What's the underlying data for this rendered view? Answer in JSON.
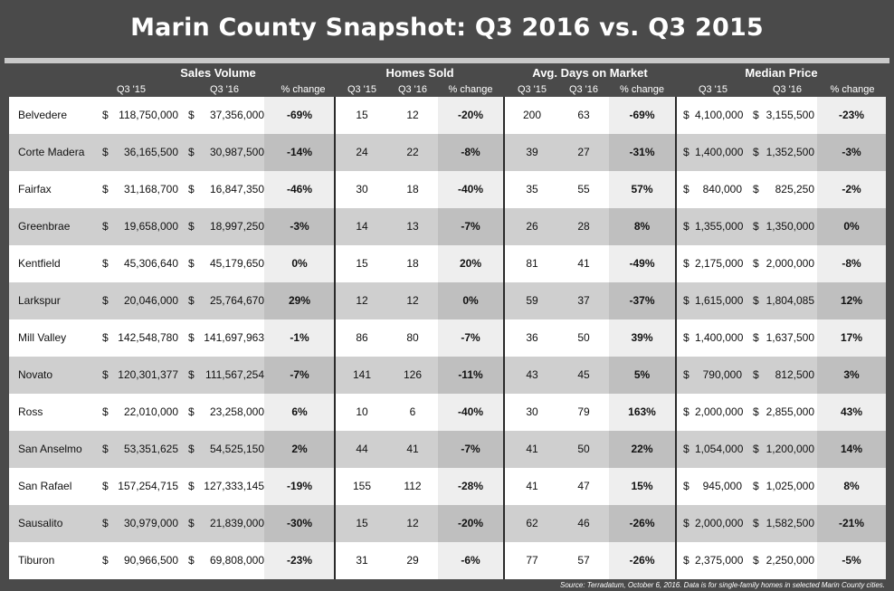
{
  "chart_data": {
    "type": "table",
    "title": "Marin County Snapshot: Q3 2016 vs. Q3 2015",
    "groups": [
      {
        "name": "Sales Volume",
        "columns": [
          "Q3 '15",
          "Q3 '16",
          "% change"
        ]
      },
      {
        "name": "Homes Sold",
        "columns": [
          "Q3 '15",
          "Q3 '16",
          "% change"
        ]
      },
      {
        "name": "Avg. Days on Market",
        "columns": [
          "Q3 '15",
          "Q3 '16",
          "% change"
        ]
      },
      {
        "name": "Median Price",
        "columns": [
          "Q3 '15",
          "Q3 '16",
          "% change"
        ]
      }
    ],
    "currency_symbol": "$",
    "rows": [
      {
        "city": "Belvedere",
        "sv15": "118,750,000",
        "sv16": "37,356,000",
        "svpc": "-69%",
        "hs15": "15",
        "hs16": "12",
        "hspc": "-20%",
        "dm15": "200",
        "dm16": "63",
        "dmpc": "-69%",
        "mp15": "4,100,000",
        "mp16": "3,155,500",
        "mppc": "-23%"
      },
      {
        "city": "Corte Madera",
        "sv15": "36,165,500",
        "sv16": "30,987,500",
        "svpc": "-14%",
        "hs15": "24",
        "hs16": "22",
        "hspc": "-8%",
        "dm15": "39",
        "dm16": "27",
        "dmpc": "-31%",
        "mp15": "1,400,000",
        "mp16": "1,352,500",
        "mppc": "-3%"
      },
      {
        "city": "Fairfax",
        "sv15": "31,168,700",
        "sv16": "16,847,350",
        "svpc": "-46%",
        "hs15": "30",
        "hs16": "18",
        "hspc": "-40%",
        "dm15": "35",
        "dm16": "55",
        "dmpc": "57%",
        "mp15": "840,000",
        "mp16": "825,250",
        "mppc": "-2%"
      },
      {
        "city": "Greenbrae",
        "sv15": "19,658,000",
        "sv16": "18,997,250",
        "svpc": "-3%",
        "hs15": "14",
        "hs16": "13",
        "hspc": "-7%",
        "dm15": "26",
        "dm16": "28",
        "dmpc": "8%",
        "mp15": "1,355,000",
        "mp16": "1,350,000",
        "mppc": "0%"
      },
      {
        "city": "Kentfield",
        "sv15": "45,306,640",
        "sv16": "45,179,650",
        "svpc": "0%",
        "hs15": "15",
        "hs16": "18",
        "hspc": "20%",
        "dm15": "81",
        "dm16": "41",
        "dmpc": "-49%",
        "mp15": "2,175,000",
        "mp16": "2,000,000",
        "mppc": "-8%"
      },
      {
        "city": "Larkspur",
        "sv15": "20,046,000",
        "sv16": "25,764,670",
        "svpc": "29%",
        "hs15": "12",
        "hs16": "12",
        "hspc": "0%",
        "dm15": "59",
        "dm16": "37",
        "dmpc": "-37%",
        "mp15": "1,615,000",
        "mp16": "1,804,085",
        "mppc": "12%"
      },
      {
        "city": "Mill Valley",
        "sv15": "142,548,780",
        "sv16": "141,697,963",
        "svpc": "-1%",
        "hs15": "86",
        "hs16": "80",
        "hspc": "-7%",
        "dm15": "36",
        "dm16": "50",
        "dmpc": "39%",
        "mp15": "1,400,000",
        "mp16": "1,637,500",
        "mppc": "17%"
      },
      {
        "city": "Novato",
        "sv15": "120,301,377",
        "sv16": "111,567,254",
        "svpc": "-7%",
        "hs15": "141",
        "hs16": "126",
        "hspc": "-11%",
        "dm15": "43",
        "dm16": "45",
        "dmpc": "5%",
        "mp15": "790,000",
        "mp16": "812,500",
        "mppc": "3%"
      },
      {
        "city": "Ross",
        "sv15": "22,010,000",
        "sv16": "23,258,000",
        "svpc": "6%",
        "hs15": "10",
        "hs16": "6",
        "hspc": "-40%",
        "dm15": "30",
        "dm16": "79",
        "dmpc": "163%",
        "mp15": "2,000,000",
        "mp16": "2,855,000",
        "mppc": "43%"
      },
      {
        "city": "San Anselmo",
        "sv15": "53,351,625",
        "sv16": "54,525,150",
        "svpc": "2%",
        "hs15": "44",
        "hs16": "41",
        "hspc": "-7%",
        "dm15": "41",
        "dm16": "50",
        "dmpc": "22%",
        "mp15": "1,054,000",
        "mp16": "1,200,000",
        "mppc": "14%"
      },
      {
        "city": "San Rafael",
        "sv15": "157,254,715",
        "sv16": "127,333,145",
        "svpc": "-19%",
        "hs15": "155",
        "hs16": "112",
        "hspc": "-28%",
        "dm15": "41",
        "dm16": "47",
        "dmpc": "15%",
        "mp15": "945,000",
        "mp16": "1,025,000",
        "mppc": "8%"
      },
      {
        "city": "Sausalito",
        "sv15": "30,979,000",
        "sv16": "21,839,000",
        "svpc": "-30%",
        "hs15": "15",
        "hs16": "12",
        "hspc": "-20%",
        "dm15": "62",
        "dm16": "46",
        "dmpc": "-26%",
        "mp15": "2,000,000",
        "mp16": "1,582,500",
        "mppc": "-21%"
      },
      {
        "city": "Tiburon",
        "sv15": "90,966,500",
        "sv16": "69,808,000",
        "svpc": "-23%",
        "hs15": "31",
        "hs16": "29",
        "hspc": "-6%",
        "dm15": "77",
        "dm16": "57",
        "dmpc": "-26%",
        "mp15": "2,375,000",
        "mp16": "2,250,000",
        "mppc": "-5%"
      }
    ],
    "source": "Source: Terradatum, October 6, 2016. Data is for single-family homes in selected Marin County cities."
  },
  "colors": {
    "background": "#4a4a4a",
    "row_light": "#ffffff",
    "row_dark": "#cfcfcf",
    "pct_light": "#eeeeee",
    "pct_dark": "#bfbfbf",
    "band": "#c9c9c9"
  }
}
